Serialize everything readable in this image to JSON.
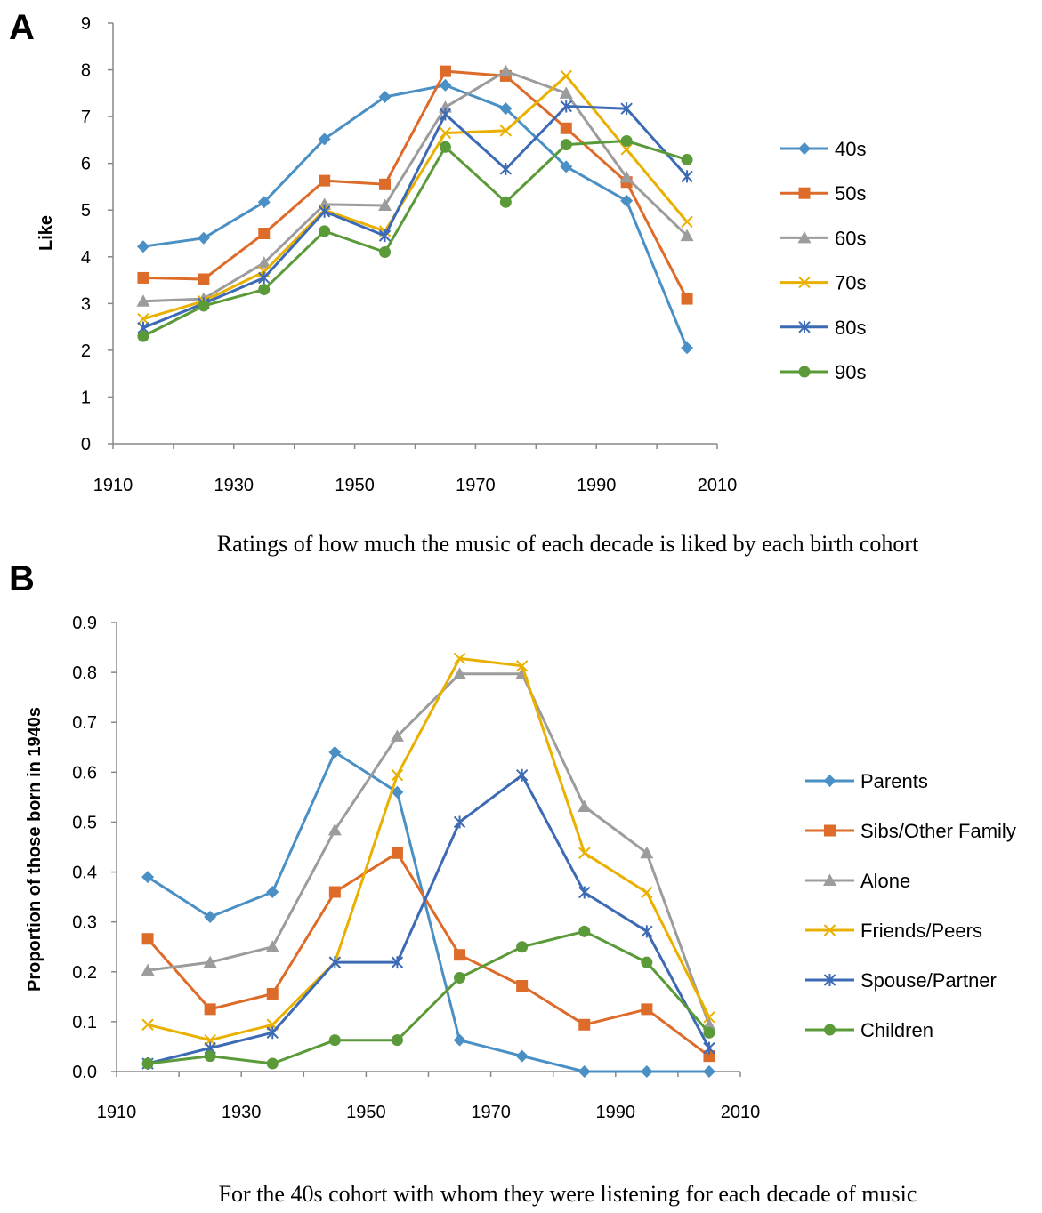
{
  "chart_data": [
    {
      "panel": "A",
      "type": "line",
      "title": "",
      "caption": "Ratings of how much the music of each decade is liked by each birth cohort",
      "xlabel": "",
      "ylabel": "Like",
      "xlim": [
        1910,
        2010
      ],
      "ylim": [
        0,
        9
      ],
      "xticks": [
        1910,
        1930,
        1950,
        1970,
        1990,
        2010
      ],
      "yticks": [
        "0",
        "1",
        "2",
        "3",
        "4",
        "5",
        "6",
        "7",
        "8",
        "9"
      ],
      "grid": false,
      "legend_position": "right",
      "x": [
        1915,
        1925,
        1935,
        1945,
        1955,
        1965,
        1975,
        1985,
        1995,
        2005
      ],
      "series": [
        {
          "name": "40s",
          "color": "#4a90c4",
          "marker": "diamond",
          "values": [
            4.22,
            4.4,
            5.17,
            6.52,
            7.42,
            7.67,
            7.17,
            5.93,
            5.2,
            2.05
          ]
        },
        {
          "name": "50s",
          "color": "#dd6b2a",
          "marker": "square",
          "values": [
            3.55,
            3.52,
            4.5,
            5.63,
            5.55,
            7.97,
            7.87,
            6.75,
            5.6,
            3.1
          ]
        },
        {
          "name": "60s",
          "color": "#9c9c9c",
          "marker": "triangle",
          "values": [
            3.05,
            3.1,
            3.87,
            5.12,
            5.1,
            7.2,
            7.97,
            7.5,
            5.7,
            4.45
          ]
        },
        {
          "name": "70s",
          "color": "#eab000",
          "marker": "x",
          "values": [
            2.67,
            3.05,
            3.68,
            5.0,
            4.55,
            6.65,
            6.7,
            7.87,
            6.3,
            4.75
          ]
        },
        {
          "name": "80s",
          "color": "#3c6ab4",
          "marker": "star",
          "values": [
            2.48,
            3.0,
            3.55,
            4.97,
            4.45,
            7.05,
            5.88,
            7.22,
            7.17,
            5.72
          ]
        },
        {
          "name": "90s",
          "color": "#5a9a38",
          "marker": "circle",
          "values": [
            2.3,
            2.95,
            3.3,
            4.55,
            4.1,
            6.35,
            5.17,
            6.4,
            6.48,
            6.08
          ]
        }
      ]
    },
    {
      "panel": "B",
      "type": "line",
      "title": "",
      "caption": "For the 40s cohort with whom they were listening for each decade of music",
      "xlabel": "",
      "ylabel": "Proportion of those born in 1940s",
      "xlim": [
        1910,
        2010
      ],
      "ylim": [
        0,
        0.9
      ],
      "xticks": [
        1910,
        1930,
        1950,
        1970,
        1990,
        2010
      ],
      "yticks": [
        "0.0",
        "0.1",
        "0.2",
        "0.3",
        "0.4",
        "0.5",
        "0.6",
        "0.7",
        "0.8",
        "0.9"
      ],
      "grid": false,
      "legend_position": "right",
      "x": [
        1915,
        1925,
        1935,
        1945,
        1955,
        1965,
        1975,
        1985,
        1995,
        2005
      ],
      "series": [
        {
          "name": "Parents",
          "color": "#4a90c4",
          "marker": "diamond",
          "values": [
            0.39,
            0.31,
            0.36,
            0.64,
            0.56,
            0.063,
            0.031,
            0.0,
            0.0,
            0.0
          ]
        },
        {
          "name": "Sibs/Other Family",
          "color": "#dd6b2a",
          "marker": "square",
          "values": [
            0.266,
            0.125,
            0.156,
            0.36,
            0.438,
            0.234,
            0.172,
            0.094,
            0.125,
            0.031
          ]
        },
        {
          "name": "Alone",
          "color": "#9c9c9c",
          "marker": "triangle",
          "values": [
            0.203,
            0.219,
            0.25,
            0.484,
            0.672,
            0.797,
            0.797,
            0.531,
            0.438,
            0.094
          ]
        },
        {
          "name": "Friends/Peers",
          "color": "#eab000",
          "marker": "x",
          "values": [
            0.094,
            0.063,
            0.094,
            0.219,
            0.594,
            0.828,
            0.813,
            0.438,
            0.359,
            0.109
          ]
        },
        {
          "name": "Spouse/Partner",
          "color": "#3c6ab4",
          "marker": "star",
          "values": [
            0.016,
            0.047,
            0.078,
            0.219,
            0.219,
            0.5,
            0.594,
            0.359,
            0.281,
            0.047
          ]
        },
        {
          "name": "Children",
          "color": "#5a9a38",
          "marker": "circle",
          "values": [
            0.016,
            0.031,
            0.016,
            0.063,
            0.063,
            0.188,
            0.25,
            0.281,
            0.219,
            0.078
          ]
        }
      ]
    }
  ]
}
